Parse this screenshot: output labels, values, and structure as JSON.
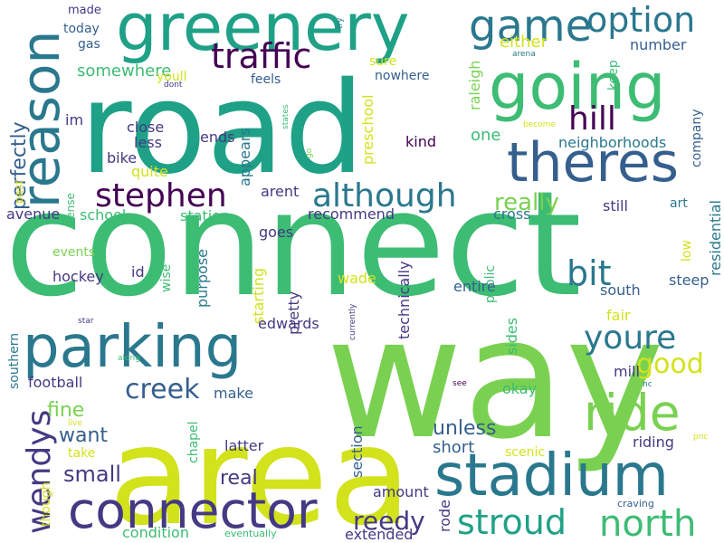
{
  "background": "#ffffff",
  "palette": {
    "teal_green": "#1fa187",
    "mid_green": "#3dbc74",
    "light_green": "#7ad151",
    "yellow": "#d2e21b",
    "dark_teal": "#2a788e",
    "mid_blue": "#355f8d",
    "indigo": "#443983",
    "dark_purple": "#440154"
  },
  "words": [
    {
      "text": "connect",
      "color": "#3dbc74"
    },
    {
      "text": "way",
      "color": "#7ad151"
    },
    {
      "text": "road",
      "color": "#1fa187"
    },
    {
      "text": "area",
      "color": "#d2e21b"
    },
    {
      "text": "greenery",
      "color": "#1fa187"
    },
    {
      "text": "going",
      "color": "#3dbc74"
    },
    {
      "text": "stadium",
      "color": "#2a788e"
    },
    {
      "text": "parking",
      "color": "#2a788e"
    },
    {
      "text": "connector",
      "color": "#443983"
    },
    {
      "text": "theres",
      "color": "#355f8d"
    },
    {
      "text": "reason",
      "color": "#2a788e"
    },
    {
      "text": "game",
      "color": "#2a788e"
    },
    {
      "text": "ride",
      "color": "#7ad151"
    },
    {
      "text": "stroud",
      "color": "#1fa187"
    },
    {
      "text": "north",
      "color": "#3dbc74"
    },
    {
      "text": "option",
      "color": "#2a788e"
    },
    {
      "text": "traffic",
      "color": "#440154"
    },
    {
      "text": "hill",
      "color": "#440154"
    },
    {
      "text": "stephen",
      "color": "#440154"
    },
    {
      "text": "although",
      "color": "#2a788e"
    },
    {
      "text": "youre",
      "color": "#2a788e"
    },
    {
      "text": "bit",
      "color": "#2a788e"
    },
    {
      "text": "wendys",
      "color": "#443983"
    },
    {
      "text": "creek",
      "color": "#355f8d"
    },
    {
      "text": "good",
      "color": "#d2e21b"
    },
    {
      "text": "reedy",
      "color": "#443983"
    },
    {
      "text": "really",
      "color": "#7ad151"
    },
    {
      "text": "unless",
      "color": "#355f8d"
    },
    {
      "text": "fine",
      "color": "#7ad151"
    },
    {
      "text": "want",
      "color": "#355f8d"
    },
    {
      "text": "small",
      "color": "#443983"
    },
    {
      "text": "real",
      "color": "#443983"
    },
    {
      "text": "short",
      "color": "#355f8d"
    },
    {
      "text": "perfectly",
      "color": "#355f8d"
    },
    {
      "text": "somewhere",
      "color": "#3dbc74"
    },
    {
      "text": "either",
      "color": "#d2e21b"
    },
    {
      "text": "number",
      "color": "#355f8d"
    },
    {
      "text": "company",
      "color": "#355f8d"
    },
    {
      "text": "residential",
      "color": "#2a788e"
    },
    {
      "text": "neighborhoods",
      "color": "#2a788e"
    },
    {
      "text": "one",
      "color": "#3dbc74"
    },
    {
      "text": "kind",
      "color": "#440154"
    },
    {
      "text": "preschool",
      "color": "#d2e21b"
    },
    {
      "text": "raleigh",
      "color": "#7ad151"
    },
    {
      "text": "keep",
      "color": "#3dbc74"
    },
    {
      "text": "nowhere",
      "color": "#355f8d"
    },
    {
      "text": "sure",
      "color": "#d2e21b"
    },
    {
      "text": "feels",
      "color": "#355f8d"
    },
    {
      "text": "youll",
      "color": "#d2e21b"
    },
    {
      "text": "gas",
      "color": "#355f8d"
    },
    {
      "text": "today",
      "color": "#355f8d"
    },
    {
      "text": "made",
      "color": "#443983"
    },
    {
      "text": "try",
      "color": "#2a788e"
    },
    {
      "text": "arena",
      "color": "#2a788e"
    },
    {
      "text": "dont",
      "color": "#443983"
    },
    {
      "text": "states",
      "color": "#3dbc74"
    },
    {
      "text": "become",
      "color": "#d2e21b"
    },
    {
      "text": "im",
      "color": "#443983"
    },
    {
      "text": "past",
      "color": "#d2e21b"
    },
    {
      "text": "close",
      "color": "#443983"
    },
    {
      "text": "less",
      "color": "#443983"
    },
    {
      "text": "bike",
      "color": "#443983"
    },
    {
      "text": "quite",
      "color": "#d2e21b"
    },
    {
      "text": "ends",
      "color": "#443983"
    },
    {
      "text": "appears",
      "color": "#2a788e"
    },
    {
      "text": "go",
      "color": "#7ad151"
    },
    {
      "text": "sense",
      "color": "#3dbc74"
    },
    {
      "text": "avenue",
      "color": "#443983"
    },
    {
      "text": "school",
      "color": "#3dbc74"
    },
    {
      "text": "station",
      "color": "#3dbc74"
    },
    {
      "text": "arent",
      "color": "#443983"
    },
    {
      "text": "goes",
      "color": "#443983"
    },
    {
      "text": "recommend",
      "color": "#443983"
    },
    {
      "text": "cross",
      "color": "#2a788e"
    },
    {
      "text": "still",
      "color": "#443983"
    },
    {
      "text": "art",
      "color": "#2a788e"
    },
    {
      "text": "low",
      "color": "#d2e21b"
    },
    {
      "text": "events",
      "color": "#7ad151"
    },
    {
      "text": "hockey",
      "color": "#443983"
    },
    {
      "text": "id",
      "color": "#443983"
    },
    {
      "text": "wise",
      "color": "#3dbc74"
    },
    {
      "text": "purpose",
      "color": "#2a788e"
    },
    {
      "text": "starting",
      "color": "#d2e21b"
    },
    {
      "text": "pretty",
      "color": "#443983"
    },
    {
      "text": "wade",
      "color": "#d2e21b"
    },
    {
      "text": "technically",
      "color": "#443983"
    },
    {
      "text": "public",
      "color": "#3dbc74"
    },
    {
      "text": "entire",
      "color": "#355f8d"
    },
    {
      "text": "south",
      "color": "#355f8d"
    },
    {
      "text": "steep",
      "color": "#355f8d"
    },
    {
      "text": "edwards",
      "color": "#443983"
    },
    {
      "text": "currently",
      "color": "#443983"
    },
    {
      "text": "sides",
      "color": "#3dbc74"
    },
    {
      "text": "fair",
      "color": "#d2e21b"
    },
    {
      "text": "mill",
      "color": "#443983"
    },
    {
      "text": "southern",
      "color": "#2a788e"
    },
    {
      "text": "star",
      "color": "#443983"
    },
    {
      "text": "along",
      "color": "#3dbc74"
    },
    {
      "text": "football",
      "color": "#443983"
    },
    {
      "text": "make",
      "color": "#355f8d"
    },
    {
      "text": "see",
      "color": "#440154"
    },
    {
      "text": "okay",
      "color": "#3dbc74"
    },
    {
      "text": "nc",
      "color": "#2a788e"
    },
    {
      "text": "live",
      "color": "#d2e21b"
    },
    {
      "text": "take",
      "color": "#d2e21b"
    },
    {
      "text": "chapel",
      "color": "#3dbc74"
    },
    {
      "text": "latter",
      "color": "#443983"
    },
    {
      "text": "section",
      "color": "#355f8d"
    },
    {
      "text": "scenic",
      "color": "#d2e21b"
    },
    {
      "text": "riding",
      "color": "#443983"
    },
    {
      "text": "pnc",
      "color": "#d2e21b"
    },
    {
      "text": "though",
      "color": "#d2e21b"
    },
    {
      "text": "amount",
      "color": "#443983"
    },
    {
      "text": "rode",
      "color": "#443983"
    },
    {
      "text": "condition",
      "color": "#3dbc74"
    },
    {
      "text": "eventually",
      "color": "#3dbc74"
    },
    {
      "text": "extended",
      "color": "#443983"
    },
    {
      "text": "craving",
      "color": "#355f8d"
    }
  ]
}
